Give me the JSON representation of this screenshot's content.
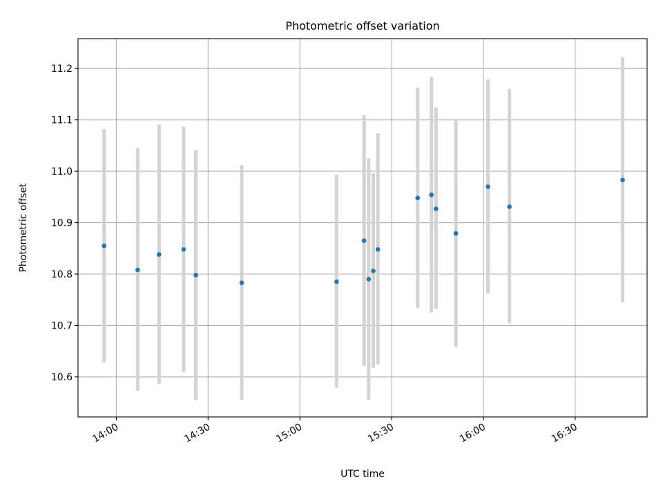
{
  "chart_data": {
    "type": "scatter",
    "title": "Photometric offset variation",
    "xlabel": "UTC time",
    "ylabel": "Photometric offset",
    "x_scale": "time",
    "xlim": [
      "13:47:30",
      "16:53:30"
    ],
    "ylim": [
      10.522,
      11.258
    ],
    "x_ticks": [
      "14:00",
      "14:30",
      "15:00",
      "15:30",
      "16:00",
      "16:30"
    ],
    "y_ticks": [
      "10.6",
      "10.7",
      "10.8",
      "10.9",
      "11.0",
      "11.1",
      "11.2"
    ],
    "x_tick_rotation": 30,
    "grid": true,
    "legend": null,
    "colors": {
      "points": "#1f77b4",
      "error_bars": "#d3d3d3"
    },
    "series": [
      {
        "points": [
          {
            "x": "13:56",
            "y": 10.855,
            "y_low": 10.628,
            "y_high": 11.082
          },
          {
            "x": "14:07",
            "y": 10.808,
            "y_low": 10.573,
            "y_high": 11.045
          },
          {
            "x": "14:14",
            "y": 10.838,
            "y_low": 10.586,
            "y_high": 11.091
          },
          {
            "x": "14:22",
            "y": 10.848,
            "y_low": 10.609,
            "y_high": 11.087
          },
          {
            "x": "14:26",
            "y": 10.798,
            "y_low": 10.555,
            "y_high": 11.041
          },
          {
            "x": "14:41",
            "y": 10.783,
            "y_low": 10.555,
            "y_high": 11.012
          },
          {
            "x": "15:12",
            "y": 10.785,
            "y_low": 10.579,
            "y_high": 10.993
          },
          {
            "x": "15:21",
            "y": 10.865,
            "y_low": 10.621,
            "y_high": 11.109
          },
          {
            "x": "15:22:30",
            "y": 10.79,
            "y_low": 10.555,
            "y_high": 11.025
          },
          {
            "x": "15:24",
            "y": 10.806,
            "y_low": 10.618,
            "y_high": 10.996
          },
          {
            "x": "15:25:30",
            "y": 10.848,
            "y_low": 10.624,
            "y_high": 11.074
          },
          {
            "x": "15:38:30",
            "y": 10.948,
            "y_low": 10.734,
            "y_high": 11.163
          },
          {
            "x": "15:43",
            "y": 10.954,
            "y_low": 10.725,
            "y_high": 11.184
          },
          {
            "x": "15:44:30",
            "y": 10.927,
            "y_low": 10.732,
            "y_high": 11.124
          },
          {
            "x": "15:51",
            "y": 10.879,
            "y_low": 10.658,
            "y_high": 11.1
          },
          {
            "x": "16:01:30",
            "y": 10.97,
            "y_low": 10.762,
            "y_high": 11.179
          },
          {
            "x": "16:08:30",
            "y": 10.931,
            "y_low": 10.704,
            "y_high": 11.16
          },
          {
            "x": "16:45:30",
            "y": 10.983,
            "y_low": 10.745,
            "y_high": 11.222
          }
        ]
      }
    ]
  }
}
